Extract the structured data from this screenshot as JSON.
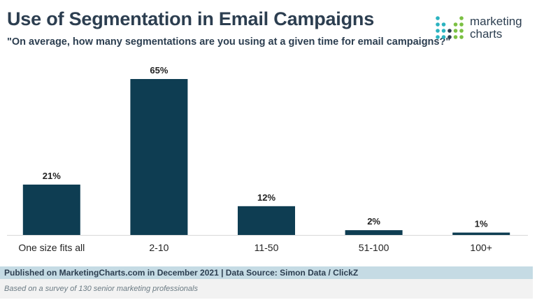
{
  "header": {
    "title": "Use of Segmentation in Email Campaigns",
    "subtitle": "\"On average, how many segmentations are you using at a given time for email campaigns?\""
  },
  "logo": {
    "line1": "marketing",
    "line2": "charts",
    "colors": [
      "#2bb3c0",
      "#7bc043",
      "#2c3e50"
    ]
  },
  "chart_data": {
    "type": "bar",
    "categories": [
      "One size fits all",
      "2-10",
      "11-50",
      "51-100",
      "100+"
    ],
    "values": [
      21,
      65,
      12,
      2,
      1
    ],
    "data_labels": [
      "21%",
      "65%",
      "12%",
      "2%",
      "1%"
    ],
    "title": "",
    "xlabel": "",
    "ylabel": "",
    "ylim": [
      0,
      65
    ],
    "grid": false,
    "bar_color": "#0e3d52"
  },
  "footer": {
    "source": "Published on MarketingCharts.com in December 2021 | Data Source: Simon Data / ClickZ",
    "note": "Based on a survey of 130 senior marketing professionals"
  }
}
